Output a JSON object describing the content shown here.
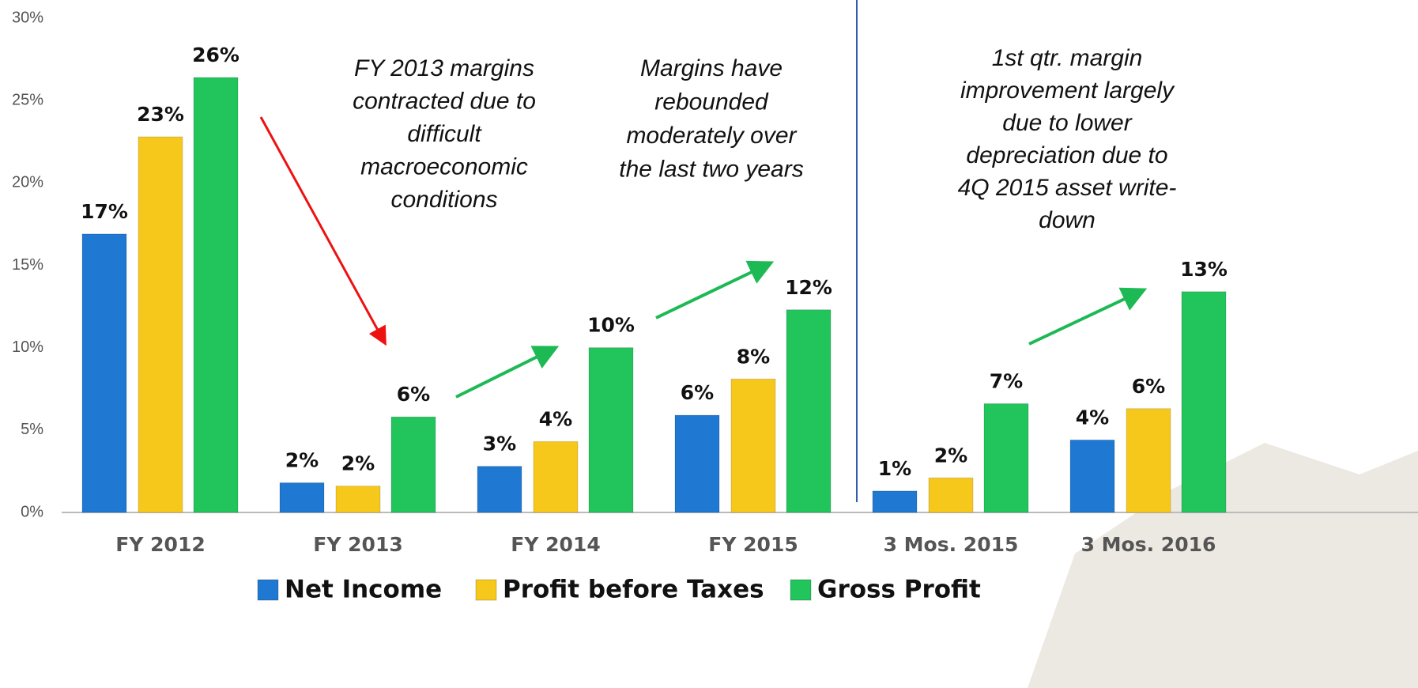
{
  "chart_data": {
    "type": "bar",
    "categories": [
      "FY 2012",
      "FY 2013",
      "FY 2014",
      "FY 2015",
      "3 Mos. 2015",
      "3 Mos. 2016"
    ],
    "series": [
      {
        "name": "Net Income",
        "color": "#1f78d1",
        "values": [
          16.9,
          1.8,
          2.8,
          5.9,
          1.3,
          4.4
        ],
        "value_labels": [
          "17%",
          "2%",
          "3%",
          "6%",
          "1%",
          "4%"
        ]
      },
      {
        "name": "Profit before Taxes",
        "color": "#f7c81c",
        "values": [
          22.8,
          1.6,
          4.3,
          8.1,
          2.1,
          6.3
        ],
        "value_labels": [
          "23%",
          "2%",
          "4%",
          "8%",
          "2%",
          "6%"
        ]
      },
      {
        "name": "Gross Profit",
        "color": "#22c45c",
        "values": [
          26.4,
          5.8,
          10.0,
          12.3,
          6.6,
          13.4
        ],
        "value_labels": [
          "26%",
          "6%",
          "10%",
          "12%",
          "7%",
          "13%"
        ]
      }
    ],
    "ylim": [
      0,
      30
    ],
    "yticks": [
      {
        "value": 0,
        "label": "0%"
      },
      {
        "value": 5,
        "label": "5%"
      },
      {
        "value": 10,
        "label": "10%"
      },
      {
        "value": 15,
        "label": "15%"
      },
      {
        "value": 20,
        "label": "20%"
      },
      {
        "value": 25,
        "label": "25%"
      },
      {
        "value": 30,
        "label": "30%"
      }
    ],
    "grid": false,
    "annotations": [
      {
        "lines": [
          "FY 2013 margins",
          "contracted due to",
          "difficult",
          "macroeconomic",
          "conditions"
        ]
      },
      {
        "lines": [
          "Margins have",
          "rebounded",
          "moderately over",
          "the last two years"
        ]
      },
      {
        "lines": [
          "1st qtr. margin",
          "improvement largely",
          "due to lower",
          "depreciation due to",
          "4Q 2015 asset write-",
          "down"
        ]
      }
    ]
  }
}
